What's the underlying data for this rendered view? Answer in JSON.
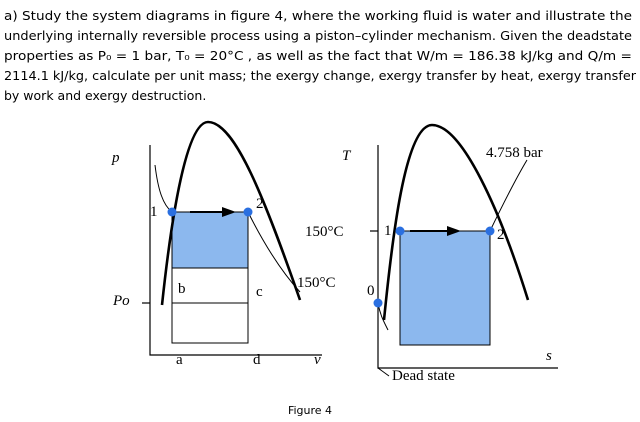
{
  "question": {
    "lines": [
      "a) Study the system diagrams in figure 4, where the working fluid is water and illustrate the",
      "underlying internally reversible process using a piston–cylinder mechanism. Given the deadstate",
      "properties as P₀ = 1 bar, T₀ = 20°C , as well as the fact that W/m = 186.38 kJ/kg and Q/m =",
      "2114.1 kJ/kg, calculate per unit mass; the exergy change, exergy transfer by heat, exergy transfer",
      "by work and exergy destruction."
    ]
  },
  "pv_diagram": {
    "y_label": "p",
    "x_label": "v",
    "p0_label": "Po",
    "state1": "1",
    "state2": "2",
    "b": "b",
    "c": "c",
    "a": "a",
    "d": "d",
    "isotherm_label": "150°C"
  },
  "ts_diagram": {
    "y_label": "T",
    "x_label": "s",
    "pressure_label": "4.758 bar",
    "temp_label": "150°C",
    "state1": "1",
    "state2": "2",
    "state0": "0",
    "dead_state": "Dead state"
  },
  "caption": "Figure 4"
}
